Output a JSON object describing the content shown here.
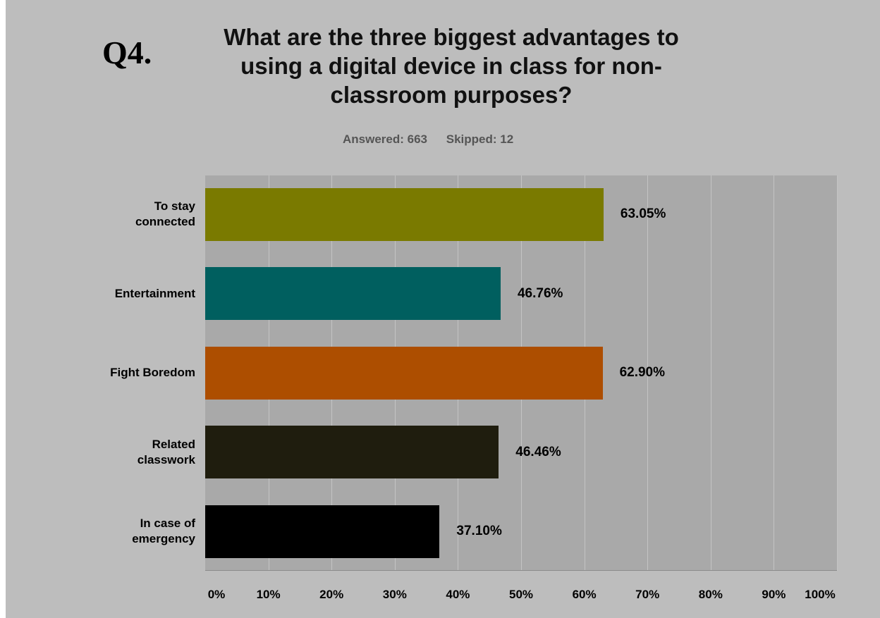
{
  "question_number": "Q4.",
  "chart_data": {
    "type": "bar",
    "orientation": "horizontal",
    "title_lines": [
      "What are the three biggest advantages to",
      "using a digital device in class for non-",
      "classroom purposes?"
    ],
    "answered_label": "Answered: 663",
    "skipped_label": "Skipped: 12",
    "categories": [
      [
        "To stay",
        "connected"
      ],
      [
        "Entertainment"
      ],
      [
        "Fight Boredom"
      ],
      [
        "Related",
        "classwork"
      ],
      [
        "In case of",
        "emergency"
      ]
    ],
    "values": [
      63.05,
      46.76,
      62.9,
      46.46,
      37.1
    ],
    "value_labels": [
      "63.05%",
      "46.76%",
      "62.90%",
      "46.46%",
      "37.10%"
    ],
    "colors": [
      "#7a7a00",
      "#005f5f",
      "#ad4e00",
      "#1f1d0e",
      "#000000"
    ],
    "xlim": [
      0,
      100
    ],
    "x_tick_labels": [
      "0%",
      "10%",
      "20%",
      "30%",
      "40%",
      "50%",
      "60%",
      "70%",
      "80%",
      "90%",
      "100%"
    ],
    "grid": true,
    "legend": "none"
  }
}
